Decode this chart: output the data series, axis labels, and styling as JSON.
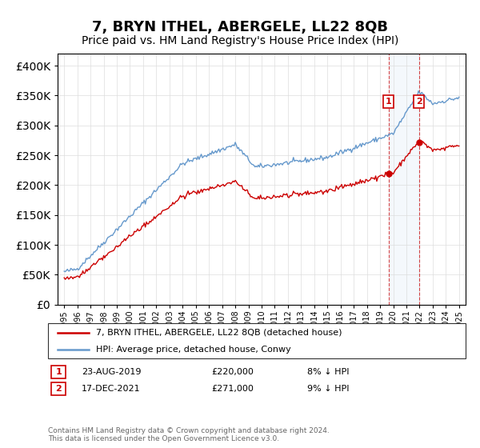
{
  "title": "7, BRYN ITHEL, ABERGELE, LL22 8QB",
  "subtitle": "Price paid vs. HM Land Registry's House Price Index (HPI)",
  "title_fontsize": 13,
  "subtitle_fontsize": 10,
  "background_color": "#ffffff",
  "grid_color": "#dddddd",
  "hpi_line_color": "#6699cc",
  "price_line_color": "#cc0000",
  "legend_label1": "7, BRYN ITHEL, ABERGELE, LL22 8QB (detached house)",
  "legend_label2": "HPI: Average price, detached house, Conwy",
  "ann1_num": "1",
  "ann1_date": "23-AUG-2019",
  "ann1_price": "£220,000",
  "ann1_pct": "8% ↓ HPI",
  "ann2_num": "2",
  "ann2_date": "17-DEC-2021",
  "ann2_price": "£271,000",
  "ann2_pct": "9% ↓ HPI",
  "vline1_x": 2019.65,
  "vline2_x": 2021.96,
  "sale1_x": 2019.65,
  "sale1_y": 220000,
  "sale2_x": 2021.96,
  "sale2_y": 271000,
  "footer": "Contains HM Land Registry data © Crown copyright and database right 2024.\nThis data is licensed under the Open Government Licence v3.0.",
  "ylim": [
    0,
    420000
  ],
  "xlim_start": 1994.5,
  "xlim_end": 2025.5
}
